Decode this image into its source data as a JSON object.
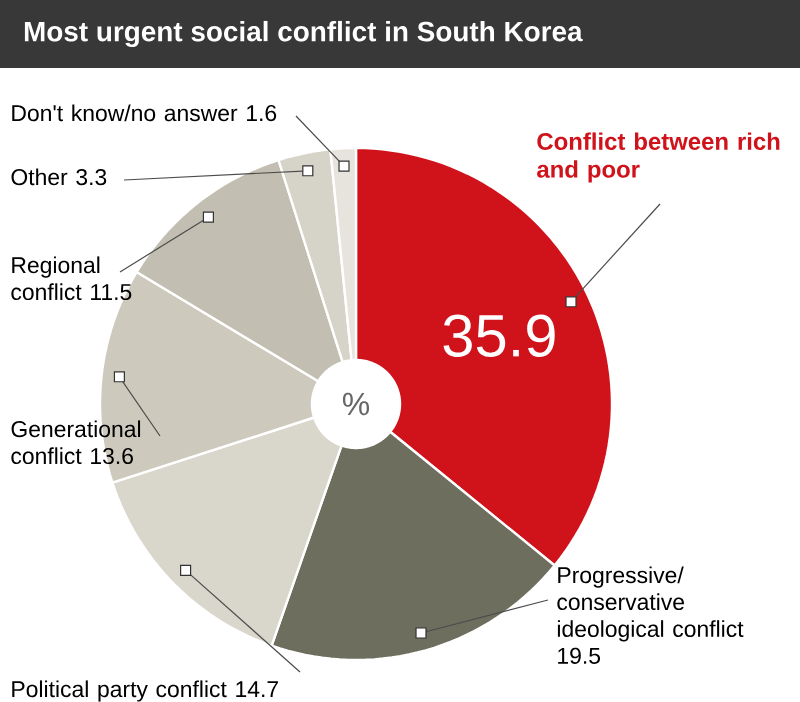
{
  "chart_data": {
    "type": "donut",
    "title": "Most urgent social conflict in South Korea",
    "categories": [
      "Conflict between rich and poor",
      "Progressive/ conservative ideological conflict",
      "Political party conflict",
      "Generational conflict",
      "Regional conflict",
      "Other",
      "Don't know/no answer"
    ],
    "values": [
      35.9,
      19.5,
      14.7,
      13.6,
      11.5,
      3.3,
      1.6
    ],
    "colors": [
      "#d0121b",
      "#6e6e5e",
      "#d9d6cb",
      "#cdcabd",
      "#c2bfb2",
      "#d6d3c8",
      "#e6e4dc"
    ],
    "data_labels": true,
    "annotations": [
      "%"
    ]
  }
}
